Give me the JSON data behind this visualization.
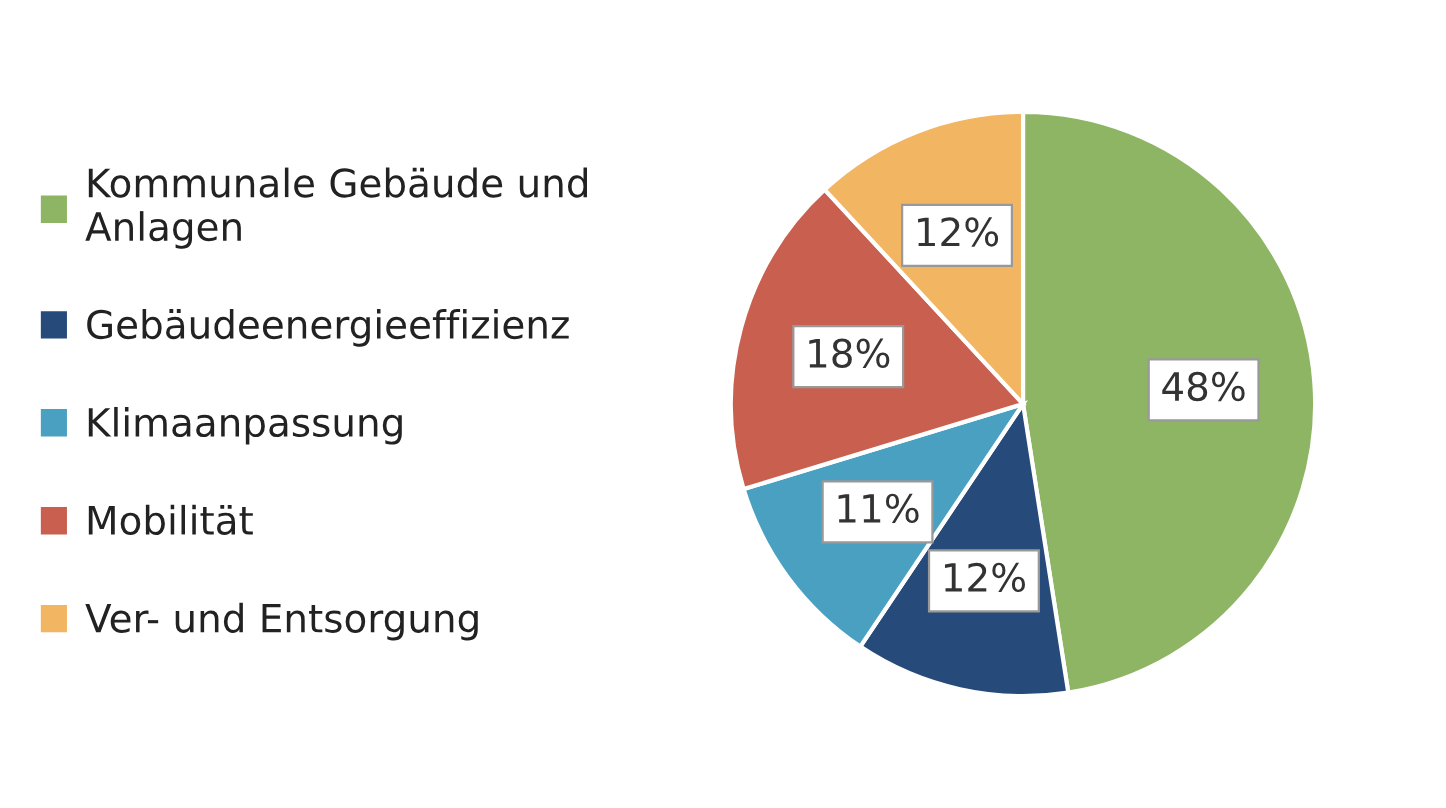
{
  "chart_data": {
    "type": "pie",
    "categories": [
      "Kommunale Gebäude und Anlagen",
      "Gebäudeenergieeffizienz",
      "Klimaanpassung",
      "Mobilität",
      "Ver- und Entsorgung"
    ],
    "values": [
      48,
      12,
      11,
      18,
      12
    ],
    "colors": [
      "#8db564",
      "#264a7a",
      "#4aa0c0",
      "#c9604f",
      "#f2b561"
    ],
    "value_labels": [
      "48%",
      "12%",
      "11%",
      "18%",
      "12%"
    ],
    "legend": "left"
  }
}
